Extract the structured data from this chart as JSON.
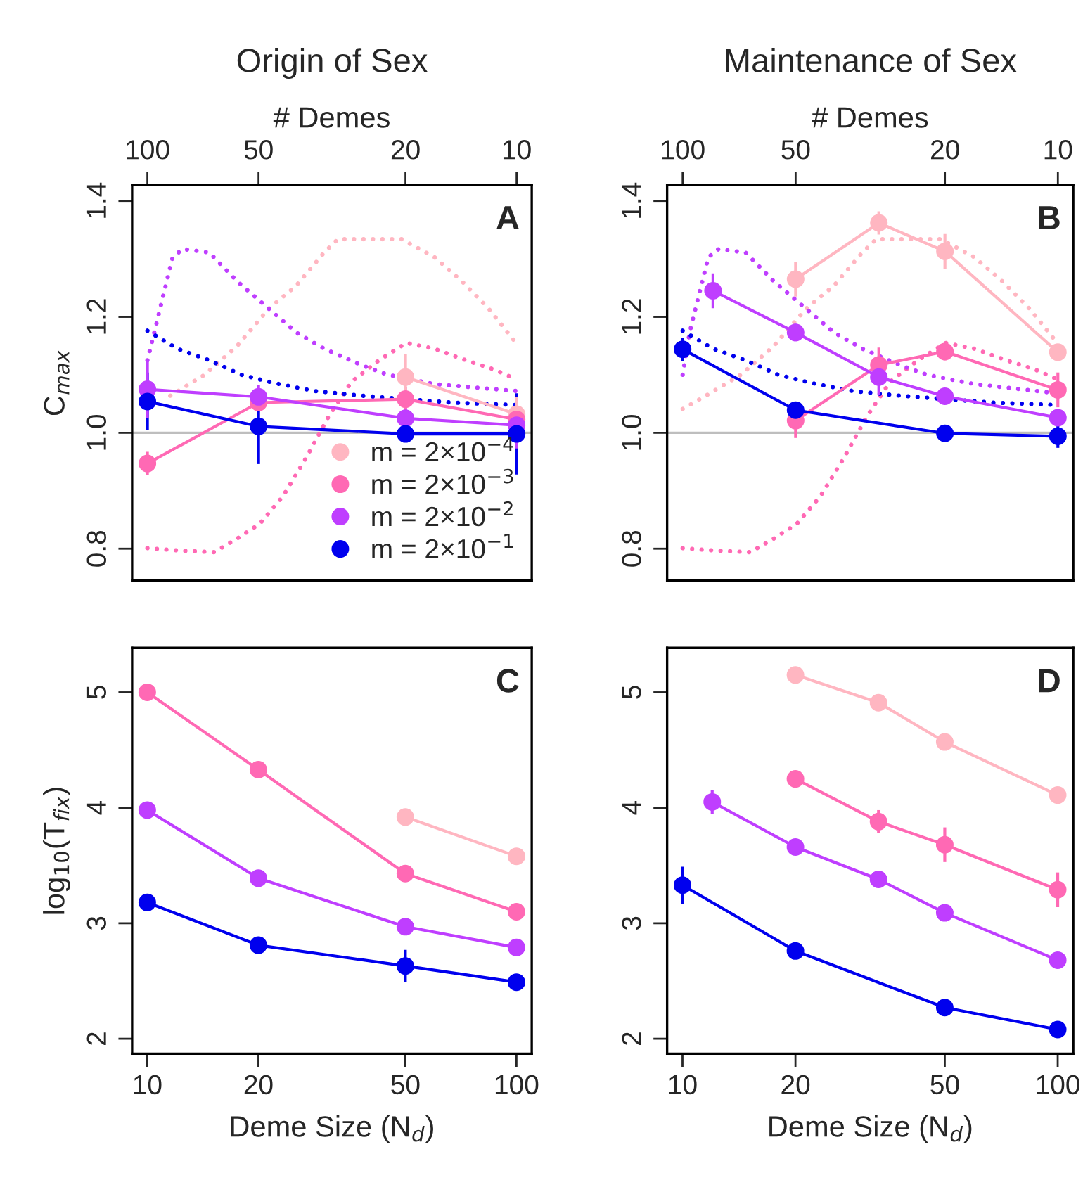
{
  "chart_data": [
    {
      "type": "line",
      "title": "Origin of Sex",
      "xlabel": "# Demes",
      "ylabel": "C$_{max}$",
      "log": "x",
      "xlim": [
        110,
        9.1
      ],
      "xticks": [
        100,
        50,
        20,
        10
      ],
      "ylim": [
        0.745,
        1.427
      ],
      "yticks": [
        0.8,
        {
          "value": 1.0,
          "label": "1.0"
        },
        1.2,
        1.4
      ],
      "grid": false,
      "legend": "bottom right",
      "annotations": [
        "A"
      ],
      "ref_lines": [
        {
          "axis": "y",
          "value": 1.0,
          "color": "#bebebe"
        }
      ],
      "series": [
        {
          "color": "#ffb6c1",
          "line_style": "dotted",
          "marker": "none",
          "x": [
            86.7,
            70.0,
            57.3,
            46.9,
            39.5,
            33.2,
            30.5,
            20.5,
            16.7,
            14.1,
            11.9,
            10.1
          ],
          "values": [
            1.064,
            1.1,
            1.149,
            1.214,
            1.254,
            1.311,
            1.334,
            1.334,
            1.303,
            1.262,
            1.214,
            1.157
          ]
        },
        {
          "color": "#ff69b4",
          "line_style": "dotted",
          "marker": "none",
          "x": [
            100,
            83.0,
            66.0,
            57.3,
            49.6,
            43.0,
            37.3,
            32.3,
            28.0,
            23.6,
            19.9,
            16.7,
            13.7,
            11.5,
            10
          ],
          "values": [
            0.801,
            0.797,
            0.794,
            0.817,
            0.843,
            0.89,
            0.955,
            1.028,
            1.088,
            1.125,
            1.155,
            1.145,
            1.125,
            1.109,
            1.092
          ]
        },
        {
          "color": "#bf3eff",
          "line_style": "dotted",
          "marker": "none",
          "x": [
            100,
            95.8,
            90.5,
            85.4,
            80.2,
            68.0,
            57.3,
            46.9,
            39.5,
            33.2,
            26.4,
            22.3,
            16.7,
            10
          ],
          "values": [
            1.125,
            1.173,
            1.238,
            1.303,
            1.317,
            1.311,
            1.262,
            1.214,
            1.173,
            1.145,
            1.117,
            1.1,
            1.084,
            1.072
          ]
        },
        {
          "color": "#0000ee",
          "line_style": "dotted",
          "marker": "none",
          "x": [
            100,
            83.0,
            68.0,
            55.6,
            45.5,
            35.2,
            26.4,
            19.9,
            14.9,
            10
          ],
          "values": [
            1.176,
            1.145,
            1.125,
            1.1,
            1.086,
            1.072,
            1.064,
            1.058,
            1.052,
            1.048
          ]
        },
        {
          "name": "m = 2×10$^{−4}$",
          "color": "#ffb6c1",
          "line_style": "solid",
          "marker": "circle",
          "x": [
            20,
            10
          ],
          "values": [
            1.096,
            1.032
          ],
          "errors": [
            0.04,
            0.03
          ]
        },
        {
          "name": "m = 2×10$^{−3}$",
          "color": "#ff69b4",
          "line_style": "solid",
          "marker": "circle",
          "x": [
            100,
            50,
            20,
            10
          ],
          "values": [
            0.947,
            1.052,
            1.058,
            1.023
          ],
          "errors": [
            0.02,
            0.01,
            0.02,
            0.02
          ]
        },
        {
          "name": "m = 2×10$^{−2}$",
          "color": "#bf3eff",
          "line_style": "solid",
          "marker": "circle",
          "x": [
            100,
            50,
            20,
            10
          ],
          "values": [
            1.075,
            1.062,
            1.025,
            1.013
          ],
          "errors": [
            0.05,
            0.02,
            0.02,
            0.04
          ]
        },
        {
          "name": "m = 2×10$^{−1}$",
          "color": "#0000ee",
          "line_style": "solid",
          "marker": "circle",
          "x": [
            100,
            50,
            20,
            10
          ],
          "values": [
            1.054,
            1.011,
            0.998,
            0.998
          ],
          "errors": [
            0.05,
            0.065,
            0.01,
            0.07
          ]
        }
      ]
    },
    {
      "type": "line",
      "title": "Maintenance of Sex",
      "xlabel": "# Demes",
      "log": "x",
      "xlim": [
        110,
        9.1
      ],
      "xticks": [
        100,
        50,
        20,
        10
      ],
      "ylim": [
        0.745,
        1.427
      ],
      "yticks": [
        0.8,
        {
          "value": 1.0,
          "label": "1.0"
        },
        1.2,
        1.4
      ],
      "grid": false,
      "annotations": [
        "B"
      ],
      "ref_lines": [
        {
          "axis": "y",
          "value": 1.0,
          "color": "#bebebe"
        }
      ],
      "series": [
        {
          "color": "#ffb6c1",
          "line_style": "dotted",
          "marker": "none",
          "x": [
            100,
            86.7,
            70.0,
            57.3,
            46.9,
            39.5,
            33.2,
            30.5,
            20.5,
            16.7,
            14.1,
            11.9,
            10.1
          ],
          "values": [
            1.041,
            1.064,
            1.1,
            1.149,
            1.214,
            1.254,
            1.311,
            1.334,
            1.334,
            1.303,
            1.262,
            1.214,
            1.157
          ]
        },
        {
          "color": "#ff69b4",
          "line_style": "dotted",
          "marker": "none",
          "x": [
            100,
            83.0,
            66.0,
            57.3,
            49.6,
            43.0,
            37.3,
            32.3,
            28.0,
            23.6,
            19.9,
            16.7,
            13.7,
            11.5,
            10
          ],
          "values": [
            0.801,
            0.797,
            0.794,
            0.817,
            0.843,
            0.89,
            0.955,
            1.028,
            1.088,
            1.125,
            1.155,
            1.145,
            1.125,
            1.109,
            1.092
          ]
        },
        {
          "color": "#bf3eff",
          "line_style": "dotted",
          "marker": "none",
          "x": [
            100,
            95.8,
            90.5,
            85.4,
            80.2,
            68.0,
            57.3,
            46.9,
            39.5,
            33.2,
            26.4,
            22.3,
            16.7,
            10
          ],
          "values": [
            1.1,
            1.173,
            1.238,
            1.303,
            1.317,
            1.311,
            1.262,
            1.214,
            1.173,
            1.145,
            1.117,
            1.1,
            1.084,
            1.068
          ]
        },
        {
          "color": "#0000ee",
          "line_style": "dotted",
          "marker": "none",
          "x": [
            100,
            83.0,
            68.0,
            55.6,
            45.5,
            35.2,
            26.4,
            19.9,
            14.9,
            10
          ],
          "values": [
            1.176,
            1.145,
            1.125,
            1.1,
            1.086,
            1.072,
            1.064,
            1.058,
            1.052,
            1.048
          ]
        },
        {
          "color": "#ffb6c1",
          "line_style": "solid",
          "marker": "circle",
          "x": [
            50,
            30,
            20,
            10
          ],
          "values": [
            1.265,
            1.362,
            1.313,
            1.139
          ],
          "errors": [
            0.03,
            0.02,
            0.03,
            0.01
          ]
        },
        {
          "color": "#ff69b4",
          "line_style": "solid",
          "marker": "circle",
          "x": [
            50,
            30,
            20,
            10
          ],
          "values": [
            1.021,
            1.117,
            1.14,
            1.074
          ],
          "errors": [
            0.03,
            0.03,
            0.015,
            0.03
          ]
        },
        {
          "color": "#bf3eff",
          "line_style": "solid",
          "marker": "circle",
          "x": [
            83,
            50,
            30,
            20,
            10
          ],
          "values": [
            1.245,
            1.173,
            1.096,
            1.063,
            1.026
          ],
          "errors": [
            0.03,
            0.015,
            0.03,
            0.01,
            0.01
          ]
        },
        {
          "color": "#0000ee",
          "line_style": "solid",
          "marker": "circle",
          "x": [
            100,
            50,
            20,
            10
          ],
          "values": [
            1.144,
            1.039,
            0.999,
            0.994
          ],
          "errors": [
            0.02,
            0.01,
            0.005,
            0.02
          ]
        }
      ]
    },
    {
      "type": "line",
      "xlabel": "Deme Size (N$_{d}$)",
      "ylabel": "log$_{10}$(T$_{fix}$)",
      "log": "x",
      "xlim": [
        9.1,
        110
      ],
      "xticks": [
        10,
        20,
        50,
        100
      ],
      "ylim": [
        1.87,
        5.385
      ],
      "yticks": [
        2,
        3,
        4,
        5
      ],
      "grid": false,
      "annotations": [
        "C"
      ],
      "series": [
        {
          "color": "#ffb6c1",
          "line_style": "solid",
          "marker": "circle",
          "x": [
            50,
            100
          ],
          "values": [
            3.92,
            3.58
          ],
          "errors": [
            0.03,
            0.07
          ]
        },
        {
          "color": "#ff69b4",
          "line_style": "solid",
          "marker": "circle",
          "x": [
            10,
            20,
            50,
            100
          ],
          "values": [
            5.0,
            4.33,
            3.43,
            3.1
          ],
          "errors": [
            0.03,
            0.06,
            0.03,
            0.07
          ]
        },
        {
          "color": "#bf3eff",
          "line_style": "solid",
          "marker": "circle",
          "x": [
            10,
            20,
            50,
            100
          ],
          "values": [
            3.98,
            3.39,
            2.97,
            2.79
          ],
          "errors": [
            0.02,
            0.02,
            0.07,
            0.06
          ]
        },
        {
          "color": "#0000ee",
          "line_style": "solid",
          "marker": "circle",
          "x": [
            10,
            20,
            50,
            100
          ],
          "values": [
            3.18,
            2.81,
            2.63,
            2.49
          ],
          "errors": [
            0.03,
            0.04,
            0.14,
            0.02
          ]
        }
      ]
    },
    {
      "type": "line",
      "xlabel": "Deme Size (N$_{d}$)",
      "log": "x",
      "xlim": [
        9.1,
        110
      ],
      "xticks": [
        10,
        20,
        50,
        100
      ],
      "ylim": [
        1.87,
        5.385
      ],
      "yticks": [
        2,
        3,
        4,
        5
      ],
      "grid": false,
      "annotations": [
        "D"
      ],
      "series": [
        {
          "color": "#ffb6c1",
          "line_style": "solid",
          "marker": "circle",
          "x": [
            20,
            33.3,
            50,
            100
          ],
          "values": [
            5.15,
            4.91,
            4.57,
            4.11
          ],
          "errors": [
            0.03,
            0.02,
            0.04,
            0.02
          ]
        },
        {
          "color": "#ff69b4",
          "line_style": "solid",
          "marker": "circle",
          "x": [
            20,
            33.3,
            50,
            100
          ],
          "values": [
            4.25,
            3.88,
            3.68,
            3.29
          ],
          "errors": [
            0.02,
            0.1,
            0.15,
            0.15
          ]
        },
        {
          "color": "#bf3eff",
          "line_style": "solid",
          "marker": "circle",
          "x": [
            12,
            20,
            33.3,
            50,
            100
          ],
          "values": [
            4.05,
            3.66,
            3.38,
            3.09,
            2.68
          ],
          "errors": [
            0.1,
            0.03,
            0.05,
            0.04,
            0.02
          ]
        },
        {
          "color": "#0000ee",
          "line_style": "solid",
          "marker": "circle",
          "x": [
            10,
            20,
            50,
            100
          ],
          "values": [
            3.33,
            2.76,
            2.27,
            2.08
          ],
          "errors": [
            0.16,
            0.02,
            0.02,
            0.02
          ]
        }
      ]
    }
  ]
}
